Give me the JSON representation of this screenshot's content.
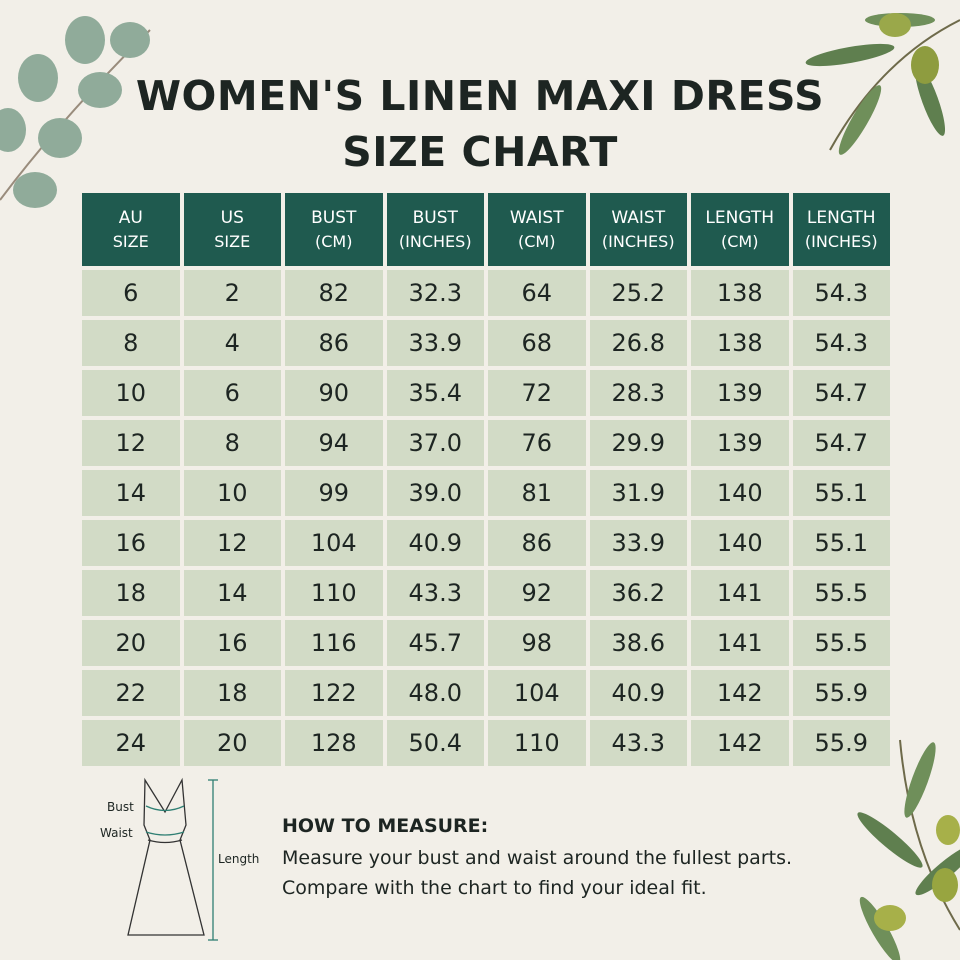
{
  "header": {
    "title": "WOMEN'S LINEN MAXI DRESS SIZE CHART"
  },
  "table": {
    "columns": [
      [
        "AU",
        "SIZE"
      ],
      [
        "US",
        "SIZE"
      ],
      [
        "BUST",
        "(CM)"
      ],
      [
        "BUST",
        "(INCHES)"
      ],
      [
        "WAIST",
        "(CM)"
      ],
      [
        "WAIST",
        "(INCHES)"
      ],
      [
        "LENGTH",
        "(CM)"
      ],
      [
        "LENGTH",
        "(INCHES)"
      ]
    ],
    "rows": [
      [
        "6",
        "2",
        "82",
        "32.3",
        "64",
        "25.2",
        "138",
        "54.3"
      ],
      [
        "8",
        "4",
        "86",
        "33.9",
        "68",
        "26.8",
        "138",
        "54.3"
      ],
      [
        "10",
        "6",
        "90",
        "35.4",
        "72",
        "28.3",
        "139",
        "54.7"
      ],
      [
        "12",
        "8",
        "94",
        "37.0",
        "76",
        "29.9",
        "139",
        "54.7"
      ],
      [
        "14",
        "10",
        "99",
        "39.0",
        "81",
        "31.9",
        "140",
        "55.1"
      ],
      [
        "16",
        "12",
        "104",
        "40.9",
        "86",
        "33.9",
        "140",
        "55.1"
      ],
      [
        "18",
        "14",
        "110",
        "43.3",
        "92",
        "36.2",
        "141",
        "55.5"
      ],
      [
        "20",
        "16",
        "116",
        "45.7",
        "98",
        "38.6",
        "141",
        "55.5"
      ],
      [
        "22",
        "18",
        "122",
        "48.0",
        "104",
        "40.9",
        "142",
        "55.9"
      ],
      [
        "24",
        "20",
        "128",
        "50.4",
        "110",
        "43.3",
        "142",
        "55.9"
      ]
    ]
  },
  "diagram": {
    "bust": "Bust",
    "waist": "Waist",
    "length": "Length"
  },
  "measure": {
    "heading": "HOW TO MEASURE:",
    "lines": [
      "Measure your bust and waist around the fullest parts.",
      "Compare with the chart to find your ideal fit."
    ]
  }
}
